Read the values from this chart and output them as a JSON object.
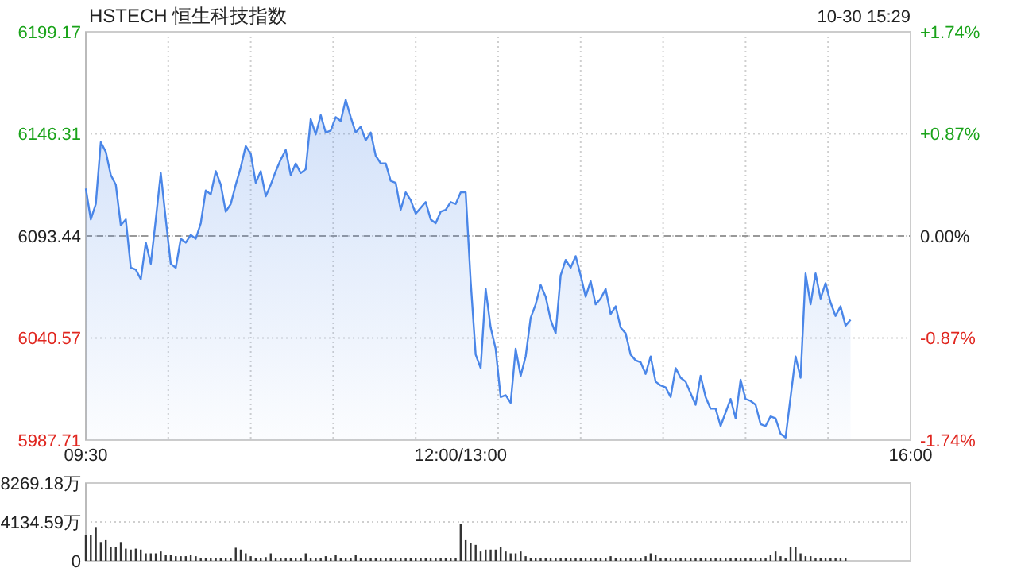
{
  "chart_data": [
    {
      "type": "area",
      "title": "HSTECH 恒生科技指数",
      "annotations": [
        "10-30 15:29"
      ],
      "color": "#4a86e8",
      "categories": [
        "09:30",
        null,
        null,
        null,
        null,
        null,
        null,
        null,
        null,
        null,
        null,
        null,
        null,
        null,
        null,
        null,
        null,
        null,
        null,
        null,
        null,
        null,
        null,
        null,
        null,
        null,
        null,
        null,
        null,
        null,
        null,
        null,
        null,
        null,
        null,
        null,
        null,
        null,
        null,
        null,
        null,
        null,
        null,
        null,
        null,
        null,
        null,
        null,
        null,
        null,
        null,
        null,
        null,
        null,
        null,
        null,
        null,
        null,
        null,
        null,
        null,
        null,
        null,
        null,
        null,
        null,
        null,
        null,
        null,
        null,
        null,
        null,
        null,
        null,
        null,
        "12:00/13:00",
        null,
        null,
        null,
        null,
        null,
        null,
        null,
        null,
        null,
        null,
        null,
        null,
        null,
        null,
        null,
        null,
        null,
        null,
        null,
        null,
        null,
        null,
        null,
        null,
        null,
        null,
        null,
        null,
        null,
        null,
        null,
        null,
        null,
        null,
        null,
        null,
        null,
        null,
        null,
        null,
        null,
        null,
        null,
        null,
        null,
        null,
        null,
        null,
        null,
        null,
        null,
        null,
        null,
        null,
        null,
        null,
        null,
        null,
        null,
        null,
        null,
        null,
        null,
        null,
        null,
        null,
        null,
        null,
        null,
        null,
        null,
        null,
        null,
        null,
        null,
        null,
        null,
        null,
        null,
        null,
        null,
        null,
        null,
        null,
        null,
        null,
        null,
        null,
        null,
        "16:00"
      ],
      "values": [
        6118,
        6102,
        6110,
        6142,
        6137,
        6125,
        6120,
        6099,
        6102,
        6077,
        6076,
        6071,
        6090,
        6079,
        6102,
        6126,
        6102,
        6079,
        6077,
        6092,
        6090,
        6094,
        6092,
        6100,
        6117,
        6115,
        6127,
        6120,
        6106,
        6110,
        6120,
        6129,
        6140,
        6136,
        6121,
        6127,
        6114,
        6120,
        6127,
        6133,
        6138,
        6125,
        6131,
        6126,
        6128,
        6154,
        6146,
        6156,
        6147,
        6148,
        6155,
        6153,
        6164,
        6155,
        6147,
        6150,
        6143,
        6147,
        6135,
        6131,
        6131,
        6122,
        6121,
        6107,
        6116,
        6112,
        6105,
        6108,
        6111,
        6102,
        6100,
        6106,
        6107,
        6111,
        6110,
        6116,
        6116,
        6070,
        6032,
        6025,
        6066,
        6046,
        6035,
        6010,
        6011,
        6007,
        6035,
        6021,
        6031,
        6051,
        6058,
        6068,
        6062,
        6050,
        6043,
        6073,
        6081,
        6077,
        6083,
        6073,
        6062,
        6070,
        6058,
        6061,
        6066,
        6053,
        6057,
        6046,
        6043,
        6032,
        6029,
        6028,
        6022,
        6031,
        6018,
        6016,
        6015,
        6010,
        6025,
        6020,
        6018,
        6012,
        6006,
        6021,
        6010,
        6004,
        6004,
        5995,
        6002,
        6009,
        5999,
        6019,
        6009,
        6008,
        6006,
        5996,
        5995,
        6000,
        5999,
        5991,
        5989,
        6010,
        6031,
        6020,
        6074,
        6058,
        6074,
        6061,
        6069,
        6059,
        6052,
        6057,
        6047,
        6050,
        null,
        null,
        null,
        null,
        null,
        null,
        null,
        null,
        null,
        null,
        null,
        null
      ],
      "ylim": [
        5987.71,
        6199.17
      ],
      "yticks": [
        5987.71,
        6040.57,
        6093.44,
        6146.31,
        6199.17
      ],
      "y2lim": [
        -1.74,
        1.74
      ],
      "y2ticks": [
        {
          "value": -1.74,
          "label": "-1.74%"
        },
        {
          "value": -0.87,
          "label": "-0.87%"
        },
        {
          "value": 0,
          "label": "0.00%"
        },
        {
          "value": 0.87,
          "label": "+0.87%"
        },
        {
          "value": 1.74,
          "label": "+1.74%"
        }
      ],
      "ref_lines": [
        {
          "axis": "y",
          "value": 6093.44,
          "color": "#999999",
          "line_style": "dashed"
        }
      ],
      "grid": true
    },
    {
      "type": "bar",
      "color": "#333333",
      "tick_labels": "y",
      "grid": "y",
      "categories": [
        null,
        null,
        null,
        null,
        null,
        null,
        null,
        null,
        null,
        null,
        null,
        null,
        null,
        null,
        null,
        null,
        null,
        null,
        null,
        null,
        null,
        null,
        null,
        null,
        null,
        null,
        null,
        null,
        null,
        null,
        null,
        null,
        null,
        null,
        null,
        null,
        null,
        null,
        null,
        null,
        null,
        null,
        null,
        null,
        null,
        null,
        null,
        null,
        null,
        null,
        null,
        null,
        null,
        null,
        null,
        null,
        null,
        null,
        null,
        null,
        null,
        null,
        null,
        null,
        null,
        null,
        null,
        null,
        null,
        null,
        null,
        null,
        null,
        null,
        null,
        null,
        null,
        null,
        null,
        null,
        null,
        null,
        null,
        null,
        null,
        null,
        null,
        null,
        null,
        null,
        null,
        null,
        null,
        null,
        null,
        null,
        null,
        null,
        null,
        null,
        null,
        null,
        null,
        null,
        null,
        null,
        null,
        null,
        null,
        null,
        null,
        null,
        null,
        null,
        null,
        null,
        null,
        null,
        null,
        null,
        null,
        null,
        null,
        null,
        null,
        null,
        null,
        null,
        null,
        null,
        null,
        null,
        null,
        null,
        null,
        null,
        null,
        null,
        null,
        null,
        null,
        null,
        null,
        null,
        null,
        null,
        null,
        null,
        null,
        null,
        null,
        null,
        null,
        null,
        null,
        null,
        null,
        null,
        null,
        null,
        null,
        null,
        null,
        null,
        null,
        null
      ],
      "values": [
        2700,
        2700,
        3600,
        2000,
        2200,
        1500,
        1500,
        2000,
        1300,
        1200,
        1300,
        1200,
        800,
        800,
        800,
        1000,
        600,
        600,
        500,
        500,
        500,
        600,
        500,
        300,
        300,
        300,
        300,
        300,
        300,
        300,
        1400,
        1200,
        800,
        500,
        300,
        300,
        400,
        800,
        300,
        300,
        300,
        300,
        300,
        300,
        800,
        300,
        300,
        300,
        500,
        300,
        600,
        300,
        300,
        300,
        600,
        300,
        300,
        300,
        300,
        300,
        300,
        300,
        300,
        300,
        300,
        300,
        300,
        300,
        300,
        300,
        300,
        300,
        300,
        300,
        300,
        3900,
        2200,
        1900,
        1700,
        1000,
        1200,
        1200,
        1200,
        1500,
        1000,
        800,
        800,
        1000,
        500,
        300,
        300,
        300,
        300,
        300,
        300,
        300,
        300,
        300,
        300,
        300,
        300,
        300,
        300,
        300,
        300,
        500,
        300,
        300,
        300,
        300,
        300,
        300,
        500,
        800,
        600,
        300,
        300,
        300,
        300,
        300,
        300,
        300,
        300,
        300,
        300,
        300,
        300,
        300,
        300,
        300,
        300,
        300,
        300,
        300,
        300,
        300,
        300,
        600,
        1000,
        500,
        300,
        1500,
        1500,
        800,
        500,
        500,
        300,
        300,
        300,
        300,
        300,
        300,
        300,
        null,
        null,
        null,
        null,
        null,
        null,
        null,
        null,
        null,
        null,
        null,
        null,
        null
      ],
      "ylim": [
        0,
        8269.18
      ],
      "yticks": [
        0,
        {
          "value": 4134.59,
          "label": "4134.59万"
        },
        {
          "value": 8269.18,
          "label": "8269.18万"
        }
      ]
    }
  ]
}
